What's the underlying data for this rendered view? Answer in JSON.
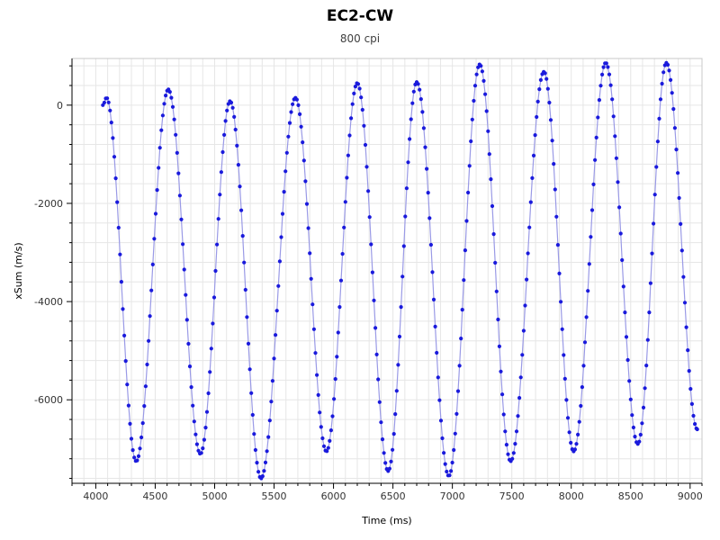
{
  "chart_data": {
    "type": "scatter",
    "title": "EC2-CW",
    "subtitle": "800 cpi",
    "xlabel": "Time (ms)",
    "ylabel": "xSum (m/s)",
    "xlim": [
      3800,
      9100
    ],
    "ylim": [
      -7700,
      950
    ],
    "x_ticks": [
      4000,
      4500,
      5000,
      5500,
      6000,
      6500,
      7000,
      7500,
      8000,
      8500,
      9000
    ],
    "y_ticks": [
      0,
      -2000,
      -4000,
      -6000
    ],
    "x_minor_step": 100,
    "y_minor_step": 400,
    "grid": true,
    "series": [
      {
        "color": "#1a1adc",
        "marker": "dot",
        "x_start": 4060,
        "x_end": 9060,
        "sample_step": 12,
        "extrema": [
          {
            "x": 4060,
            "y": 0
          },
          {
            "x": 4090,
            "y": 150
          },
          {
            "x": 4340,
            "y": -7250
          },
          {
            "x": 4610,
            "y": 320
          },
          {
            "x": 4880,
            "y": -7100
          },
          {
            "x": 5130,
            "y": 80
          },
          {
            "x": 5390,
            "y": -7600
          },
          {
            "x": 5680,
            "y": 150
          },
          {
            "x": 5940,
            "y": -7050
          },
          {
            "x": 6200,
            "y": 450
          },
          {
            "x": 6460,
            "y": -7450
          },
          {
            "x": 6700,
            "y": 470
          },
          {
            "x": 6970,
            "y": -7550
          },
          {
            "x": 7230,
            "y": 830
          },
          {
            "x": 7490,
            "y": -7250
          },
          {
            "x": 7770,
            "y": 680
          },
          {
            "x": 8020,
            "y": -7050
          },
          {
            "x": 8290,
            "y": 860
          },
          {
            "x": 8560,
            "y": -6900
          },
          {
            "x": 8800,
            "y": 860
          },
          {
            "x": 9060,
            "y": -6600
          }
        ]
      }
    ]
  },
  "colors": {
    "series": "#1a1adc",
    "grid": "#e6e6e6",
    "axis": "#000000",
    "background": "#ffffff"
  }
}
